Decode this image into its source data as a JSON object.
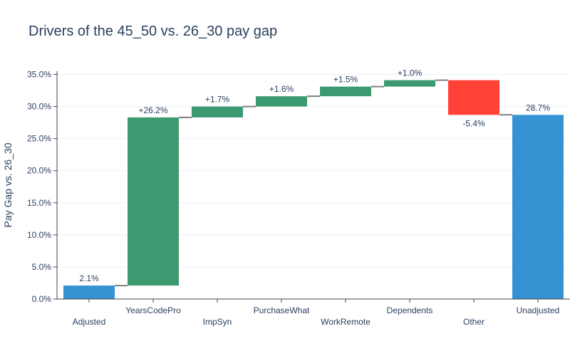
{
  "chart_data": {
    "type": "waterfall",
    "title": "Drivers of the 45_50 vs. 26_30 pay gap",
    "xlabel": "",
    "ylabel": "Pay Gap vs. 26_30",
    "ylim": [
      0,
      35.5
    ],
    "y_ticks": [
      0,
      5,
      10,
      15,
      20,
      25,
      30,
      35
    ],
    "y_tick_labels": [
      "0.0%",
      "5.0%",
      "10.0%",
      "15.0%",
      "20.0%",
      "25.0%",
      "30.0%",
      "35.0%"
    ],
    "grid": true,
    "legend": "none",
    "bars": [
      {
        "category": "Adjusted",
        "kind": "total",
        "base": 0,
        "value": 2.1,
        "label": "2.1%"
      },
      {
        "category": "YearsCodePro",
        "kind": "increase",
        "base": 2.1,
        "value": 26.2,
        "label": "+26.2%"
      },
      {
        "category": "ImpSyn",
        "kind": "increase",
        "base": 28.3,
        "value": 1.7,
        "label": "+1.7%"
      },
      {
        "category": "PurchaseWhat",
        "kind": "increase",
        "base": 30.0,
        "value": 1.6,
        "label": "+1.6%"
      },
      {
        "category": "WorkRemote",
        "kind": "increase",
        "base": 31.6,
        "value": 1.5,
        "label": "+1.5%"
      },
      {
        "category": "Dependents",
        "kind": "increase",
        "base": 33.1,
        "value": 1.0,
        "label": "+1.0%"
      },
      {
        "category": "Other",
        "kind": "decrease",
        "base": 34.1,
        "value": -5.4,
        "label": "-5.4%"
      },
      {
        "category": "Unadjusted",
        "kind": "total",
        "base": 0,
        "value": 28.7,
        "label": "28.7%"
      }
    ],
    "colors": {
      "total": "#3593d4",
      "increase": "#3d9970",
      "decrease": "#ff4136",
      "connector": "#7f7f7f",
      "grid": "#ebf0f8",
      "axis_line": "#444444"
    }
  }
}
